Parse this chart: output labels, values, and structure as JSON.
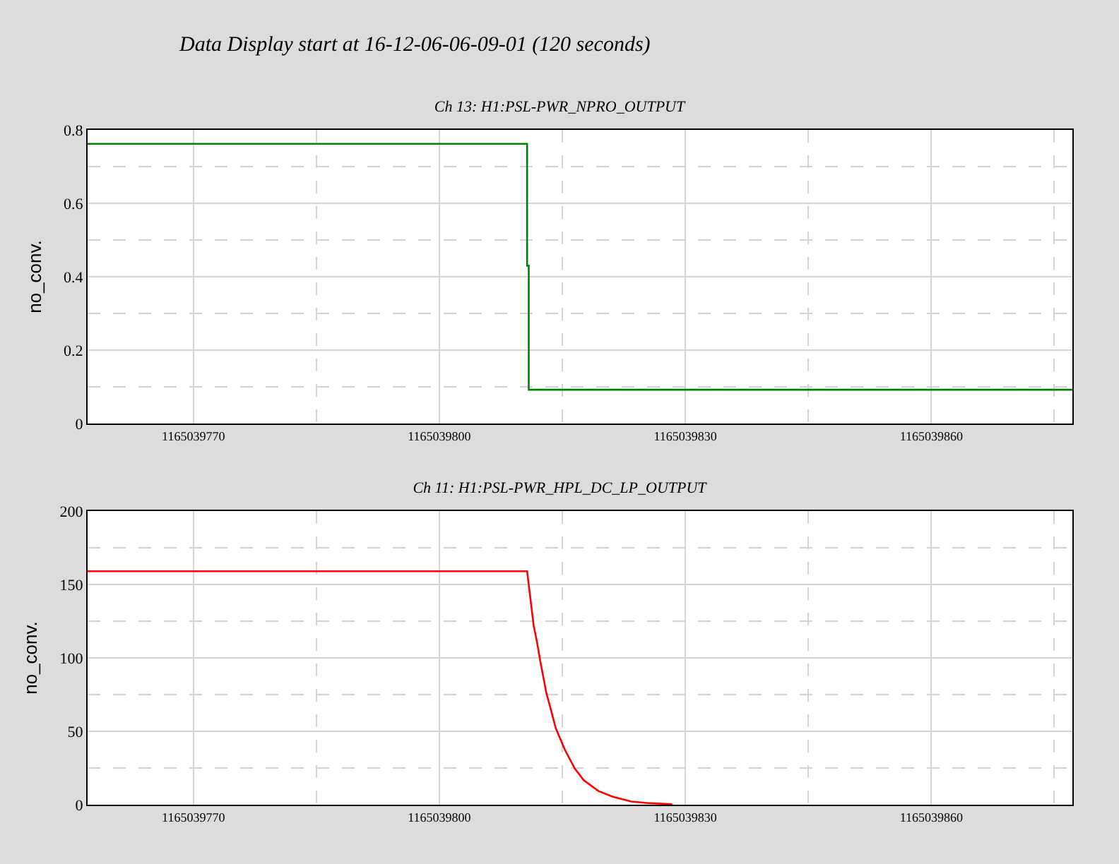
{
  "chart_data": [
    {
      "type": "line",
      "title": "Ch 13: H1:PSL-PWR_NPRO_OUTPUT",
      "ylabel": "no_conv.",
      "annotations": [
        "Data Display start at 16-12-06-06-09-01 (120 seconds)"
      ],
      "x": [
        1165039757.1,
        1165039810.7,
        1165039810.7,
        1165039810.9,
        1165039810.9,
        1165039877.2
      ],
      "series": [
        {
          "color": "#008000",
          "values": [
            0.762,
            0.762,
            0.43,
            0.43,
            0.092,
            0.092
          ]
        }
      ],
      "xlim": [
        1165039757.1,
        1165039877.2
      ],
      "xticks": [
        1165039770,
        {
          "value": 1165039785,
          "label": null
        },
        1165039800,
        {
          "value": 1165039815,
          "label": null
        },
        1165039830,
        {
          "value": 1165039845,
          "label": null
        },
        1165039860,
        {
          "value": 1165039875,
          "label": null
        }
      ],
      "ylim": [
        0,
        0.8
      ],
      "yticks": [
        0,
        {
          "value": 0.1,
          "label": null
        },
        0.2,
        {
          "value": 0.3,
          "label": null
        },
        0.4,
        {
          "value": 0.5,
          "label": null
        },
        0.6,
        {
          "value": 0.7,
          "label": null
        },
        0.8
      ],
      "grid": true
    },
    {
      "type": "line",
      "title": "Ch 11: H1:PSL-PWR_HPL_DC_LP_OUTPUT",
      "ylabel": "no_conv.",
      "x": [
        1165039757.1,
        1165039810.7,
        1165039811.5,
        1165039811.9,
        1165039812.3,
        1165039813.05,
        1165039813.3,
        1165039814.2,
        1165039815.3,
        1165039816.5,
        1165039817.6,
        1165039819.4,
        1165039821.1,
        1165039823.4,
        1165039825.7,
        1165039828.4
      ],
      "series": [
        {
          "color": "#ff0000",
          "values": [
            159,
            159,
            122,
            111,
            98,
            76,
            71,
            52,
            37.5,
            24.7,
            16.7,
            9.3,
            5.5,
            2.2,
            1,
            0.3
          ]
        }
      ],
      "xlim": [
        1165039757.1,
        1165039877.2
      ],
      "xticks": [
        1165039770,
        {
          "value": 1165039785,
          "label": null
        },
        1165039800,
        {
          "value": 1165039815,
          "label": null
        },
        1165039830,
        {
          "value": 1165039845,
          "label": null
        },
        1165039860,
        {
          "value": 1165039875,
          "label": null
        }
      ],
      "ylim": [
        0,
        200
      ],
      "yticks": [
        0,
        {
          "value": 25,
          "label": null
        },
        50,
        {
          "value": 75,
          "label": null
        },
        100,
        {
          "value": 125,
          "label": null
        },
        150,
        {
          "value": 175,
          "label": null
        },
        200
      ],
      "grid": true
    }
  ]
}
